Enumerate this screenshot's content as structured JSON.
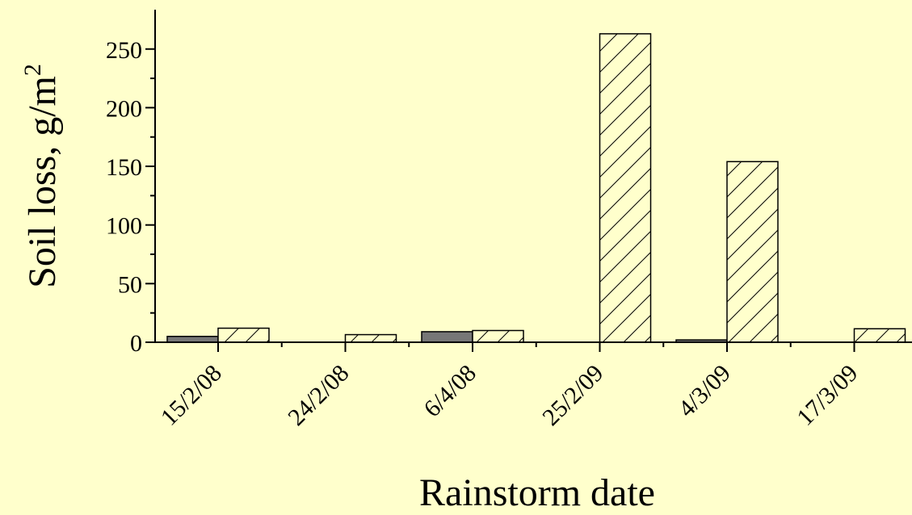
{
  "chart_data": {
    "type": "bar",
    "xlabel": "Rainstorm date",
    "ylabel": "Soil loss, g/m",
    "ylabel_superscript": "2",
    "categories": [
      "15/2/08",
      "24/2/08",
      "6/4/08",
      "25/2/09",
      "4/3/09",
      "17/3/09"
    ],
    "series": [
      {
        "values": [
          5,
          0,
          9,
          0,
          2,
          0
        ],
        "color": "#777777",
        "pattern": "solid"
      },
      {
        "values": [
          12,
          6.5,
          10,
          263,
          154,
          11.5
        ],
        "color": "#FFFFCC",
        "pattern": "diagonal-hatch"
      }
    ],
    "ylim": [
      0,
      285
    ],
    "yticks": [
      0,
      50,
      100,
      150,
      200,
      250
    ],
    "grid": false,
    "legend": "none"
  }
}
